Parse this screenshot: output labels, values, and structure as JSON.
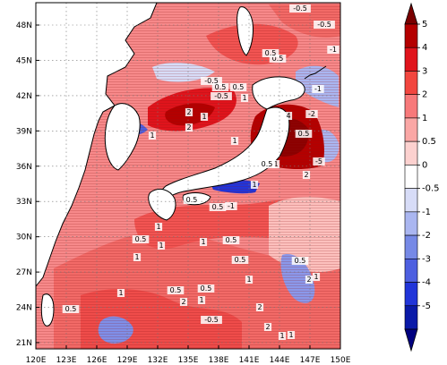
{
  "map": {
    "lon_labels": [
      "120E",
      "123E",
      "126E",
      "129E",
      "132E",
      "135E",
      "138E",
      "141E",
      "144E",
      "147E",
      "150E"
    ],
    "lat_labels": [
      "21N",
      "24N",
      "27N",
      "30N",
      "33N",
      "36N",
      "39N",
      "42N",
      "45N",
      "48N"
    ],
    "contour_labels": [
      "-0.5",
      "-0.5",
      "-1",
      "0.5",
      "-0.5",
      "0.5",
      "-0.5",
      "1",
      "2",
      "1",
      "0.5",
      "0.5",
      "2",
      "1",
      "-1",
      "4",
      "-2",
      "-5",
      "0.5",
      "1",
      "1",
      "0.5",
      "2",
      "0.5",
      "1",
      "-1",
      "0.5",
      "1",
      "0.5",
      "1",
      "1",
      "0.5",
      "1",
      "0.5",
      "0.5",
      "1",
      "2",
      "0.5",
      "1",
      "2",
      "0.5",
      "1",
      "2",
      "1",
      "2",
      "-0.5",
      "1",
      "0.5",
      "1"
    ]
  },
  "colorbar": {
    "labels": [
      "5",
      "4",
      "3",
      "2",
      "1",
      "0.5",
      "0",
      "-0.5",
      "-1",
      "-2",
      "-3",
      "-4",
      "-5"
    ],
    "colors": [
      "#b40000",
      "#e0141c",
      "#f2463f",
      "#f7797a",
      "#faa7a5",
      "#fcd1cf",
      "#ffffff",
      "#d7dcf7",
      "#aab6f0",
      "#7689e6",
      "#4d5fe0",
      "#2135d9",
      "#0a1aa8"
    ],
    "top_arrow_color": "#7a0000",
    "bottom_arrow_color": "#000080"
  }
}
